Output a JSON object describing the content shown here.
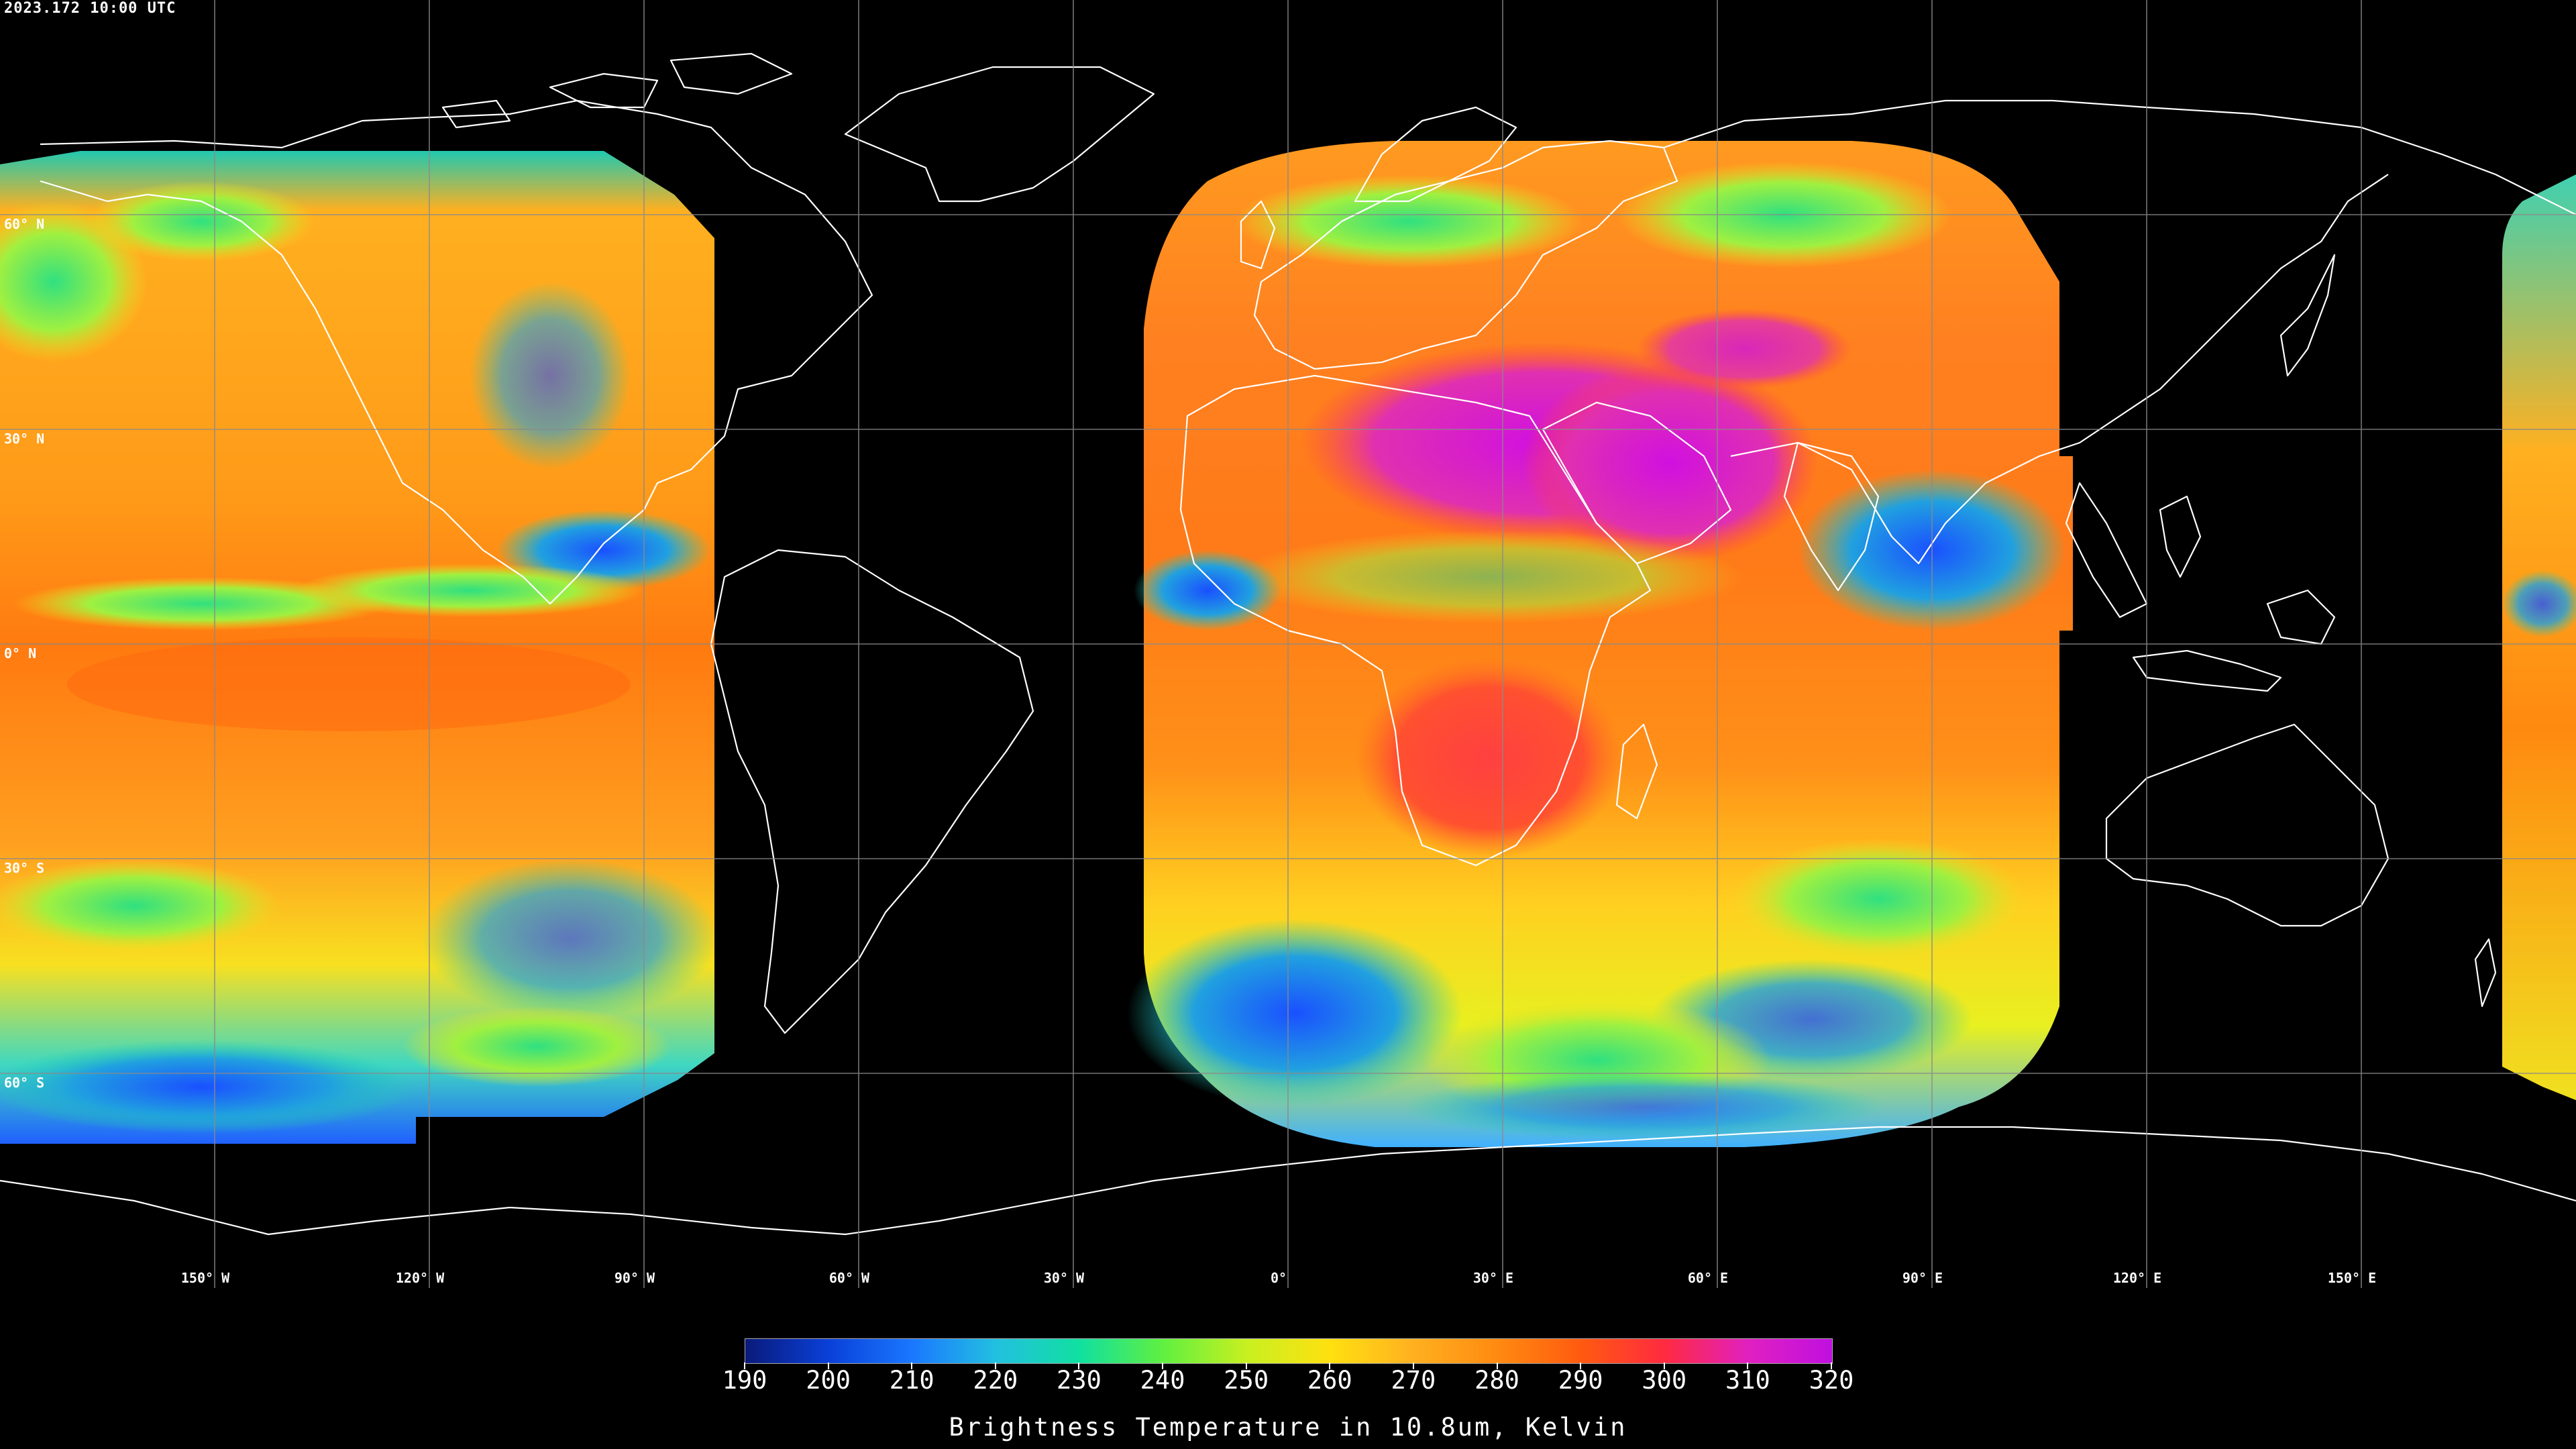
{
  "timestamp": "2023.172 10:00 UTC",
  "latitudes": [
    "60° N",
    "30° N",
    "0° N",
    "30° S",
    "60° S"
  ],
  "longitudes": [
    "150° W",
    "120° W",
    "90° W",
    "60° W",
    "30° W",
    "0°",
    "30° E",
    "60° E",
    "90° E",
    "120° E",
    "150° E"
  ],
  "colorbar": {
    "title": "Brightness Temperature in 10.8um, Kelvin",
    "ticks": [
      "190",
      "200",
      "210",
      "220",
      "230",
      "240",
      "250",
      "260",
      "270",
      "280",
      "290",
      "300",
      "310",
      "320"
    ],
    "min": 190,
    "max": 320,
    "colors": [
      "#0a1a7a",
      "#0a40d8",
      "#1a78ff",
      "#22c0e0",
      "#10e0a0",
      "#60f040",
      "#c8f020",
      "#ffe010",
      "#ffb020",
      "#ff8a10",
      "#ff5a10",
      "#ff2a40",
      "#e020c0",
      "#c010e0"
    ]
  },
  "colors": {
    "background": "#000000",
    "grid": "#808080",
    "coastline": "#ffffff",
    "warm": "#ff8a10",
    "hot": "#ff3030",
    "desert": "#d020e0",
    "cold": "#1a6cff",
    "cool": "#20d0b0",
    "mild": "#f0e020"
  }
}
